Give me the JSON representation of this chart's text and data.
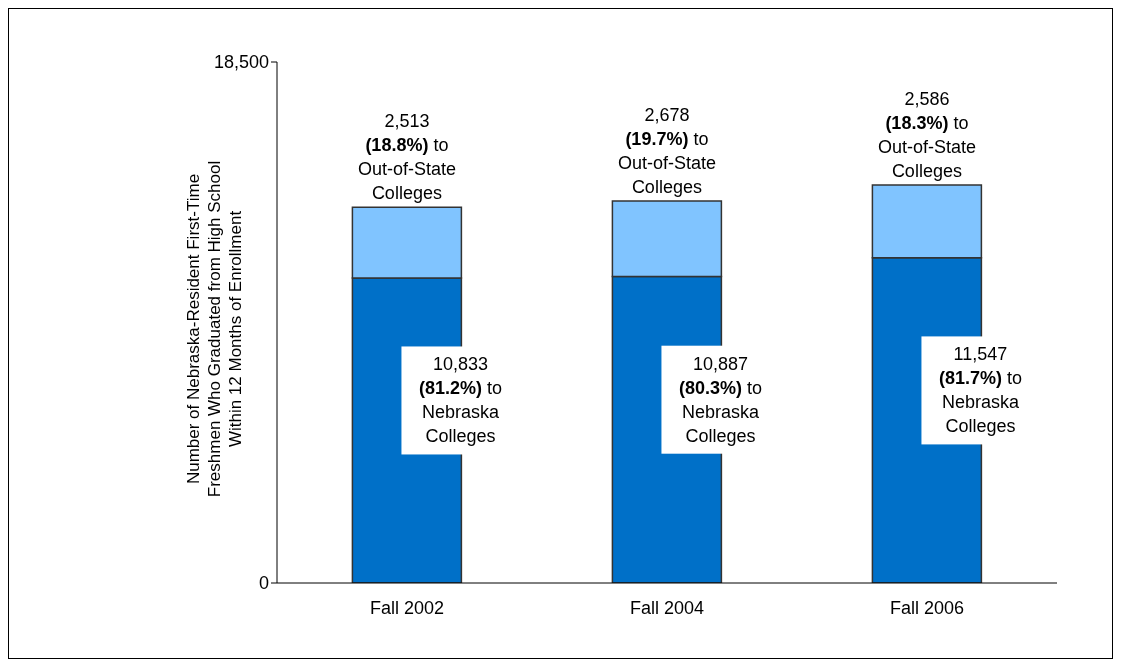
{
  "chart_data": {
    "type": "bar",
    "stacked": true,
    "ylabel": "Number of Nebraska-Resident First-Time Freshmen Who Graduated from High School Within 12 Months of Enrollment",
    "categories": [
      "Fall 2002",
      "Fall 2004",
      "Fall 2006"
    ],
    "series": [
      {
        "color": "#0070c8",
        "values": [
          10833,
          10887,
          11547
        ],
        "value_labels": [
          "10,833\n(81.2%) to\nNebraska\nColleges",
          "10,887\n(80.3%) to\nNebraska\nColleges",
          "11,547\n(81.7%) to\nNebraska\nColleges"
        ]
      },
      {
        "color": "#80c4ff",
        "values": [
          2513,
          2678,
          2586
        ],
        "value_labels": [
          "2,513\n(18.8%) to\nOut-of-State\nColleges",
          "2,678\n(19.7%) to\nOut-of-State\nColleges",
          "2,586\n(18.3%) to\nOut-of-State\nColleges"
        ]
      }
    ],
    "ylim": [
      0,
      18500
    ],
    "yticks": [
      0,
      {
        "value": 18500,
        "label": "18,500"
      }
    ],
    "grid": false,
    "legend": false
  }
}
